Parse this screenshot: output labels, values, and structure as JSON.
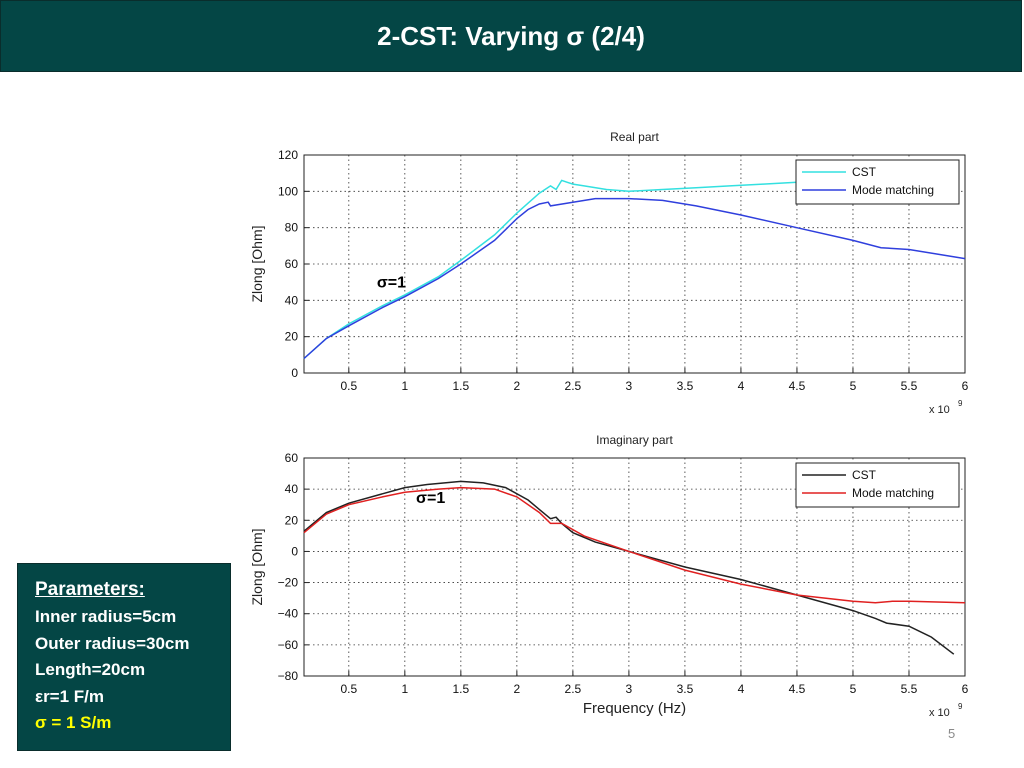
{
  "slide": {
    "title": "2-CST: Varying σ (2/4)",
    "page_number": "5",
    "colors": {
      "title_bg": "#044645",
      "param_highlight": "#ffff00"
    }
  },
  "parameters": {
    "heading": "Parameters:",
    "lines": [
      "Inner radius=5cm",
      "Outer radius=30cm",
      "Length=20cm",
      "εr=1 F/m"
    ],
    "highlight": "σ  = 1 S/m"
  },
  "chart_data": [
    {
      "type": "line",
      "title": "Real part",
      "xlabel": "",
      "ylabel": "Zlong [Ohm]",
      "x_multiplier_label": "x 10",
      "x_multiplier_exp": "9",
      "xlim": [
        0.1,
        6
      ],
      "ylim": [
        0,
        120
      ],
      "xticks": [
        0.5,
        1,
        1.5,
        2,
        2.5,
        3,
        3.5,
        4,
        4.5,
        5,
        5.5,
        6
      ],
      "xtick_labels": [
        "0.5",
        "1",
        "1.5",
        "2",
        "2.5",
        "3",
        "3.5",
        "4",
        "4.5",
        "5",
        "5.5",
        "6"
      ],
      "yticks": [
        0,
        20,
        40,
        60,
        80,
        100,
        120
      ],
      "ytick_labels": [
        "0",
        "20",
        "40",
        "60",
        "80",
        "100",
        "120"
      ],
      "grid": true,
      "legend_position": "top-right",
      "annotation": {
        "text": "σ=1",
        "x": 0.75,
        "y": 47
      },
      "series": [
        {
          "name": "CST",
          "color": "#33e0e0",
          "x": [
            0.1,
            0.3,
            0.5,
            0.8,
            1.0,
            1.3,
            1.5,
            1.8,
            2.0,
            2.2,
            2.3,
            2.35,
            2.4,
            2.45,
            2.5,
            2.6,
            2.8,
            3.0,
            3.3,
            3.6,
            3.9,
            4.2,
            4.5,
            4.6
          ],
          "y": [
            8,
            19,
            27,
            37,
            43,
            53,
            62,
            76,
            88,
            99,
            103,
            101,
            106,
            105,
            104,
            103,
            101,
            100,
            101,
            102,
            103,
            104,
            105,
            105
          ]
        },
        {
          "name": "Mode matching",
          "color": "#2f3fdd",
          "x": [
            0.1,
            0.3,
            0.5,
            0.8,
            1.0,
            1.3,
            1.5,
            1.8,
            2.0,
            2.1,
            2.2,
            2.28,
            2.3,
            2.5,
            2.7,
            3.0,
            3.3,
            3.6,
            4.0,
            4.5,
            5.0,
            5.25,
            5.5,
            6.0
          ],
          "y": [
            8,
            19,
            26,
            36,
            42,
            52,
            60,
            73,
            85,
            90,
            93,
            94,
            92,
            94,
            96,
            96,
            95,
            92,
            87,
            80,
            73,
            69,
            68,
            63
          ]
        }
      ]
    },
    {
      "type": "line",
      "title": "Imaginary part",
      "xlabel": "Frequency (Hz)",
      "ylabel": "Zlong [Ohm]",
      "x_multiplier_label": "x 10",
      "x_multiplier_exp": "9",
      "xlim": [
        0.1,
        6
      ],
      "ylim": [
        -80,
        60
      ],
      "xticks": [
        0.5,
        1,
        1.5,
        2,
        2.5,
        3,
        3.5,
        4,
        4.5,
        5,
        5.5,
        6
      ],
      "xtick_labels": [
        "0.5",
        "1",
        "1.5",
        "2",
        "2.5",
        "3",
        "3.5",
        "4",
        "4.5",
        "5",
        "5.5",
        "6"
      ],
      "yticks": [
        -80,
        -60,
        -40,
        -20,
        0,
        20,
        40,
        60
      ],
      "ytick_labels": [
        "−80",
        "−60",
        "−40",
        "−20",
        "0",
        "20",
        "40",
        "60"
      ],
      "grid": true,
      "legend_position": "top-right",
      "annotation": {
        "text": "σ=1",
        "x": 1.1,
        "y": 31
      },
      "series": [
        {
          "name": "CST",
          "color": "#222222",
          "x": [
            0.1,
            0.3,
            0.5,
            0.8,
            1.0,
            1.2,
            1.5,
            1.7,
            1.9,
            2.1,
            2.2,
            2.3,
            2.35,
            2.4,
            2.5,
            2.7,
            3.0,
            3.5,
            4.0,
            4.5,
            5.0,
            5.2,
            5.3,
            5.5,
            5.7,
            5.9
          ],
          "y": [
            13,
            25,
            31,
            37,
            41,
            43,
            45,
            44,
            41,
            33,
            27,
            21,
            22,
            18,
            12,
            6,
            0,
            -10,
            -18,
            -28,
            -38,
            -43,
            -46,
            -48,
            -55,
            -66
          ]
        },
        {
          "name": "Mode matching",
          "color": "#e02020",
          "x": [
            0.1,
            0.3,
            0.5,
            0.8,
            1.0,
            1.3,
            1.5,
            1.8,
            2.0,
            2.2,
            2.3,
            2.4,
            2.6,
            3.0,
            3.5,
            4.0,
            4.5,
            5.0,
            5.2,
            5.35,
            5.5,
            6.0
          ],
          "y": [
            12,
            24,
            30,
            35,
            38,
            40,
            41,
            40,
            35,
            25,
            18,
            18,
            10,
            0,
            -12,
            -21,
            -28,
            -32,
            -33,
            -32,
            -32,
            -33
          ]
        }
      ]
    }
  ]
}
